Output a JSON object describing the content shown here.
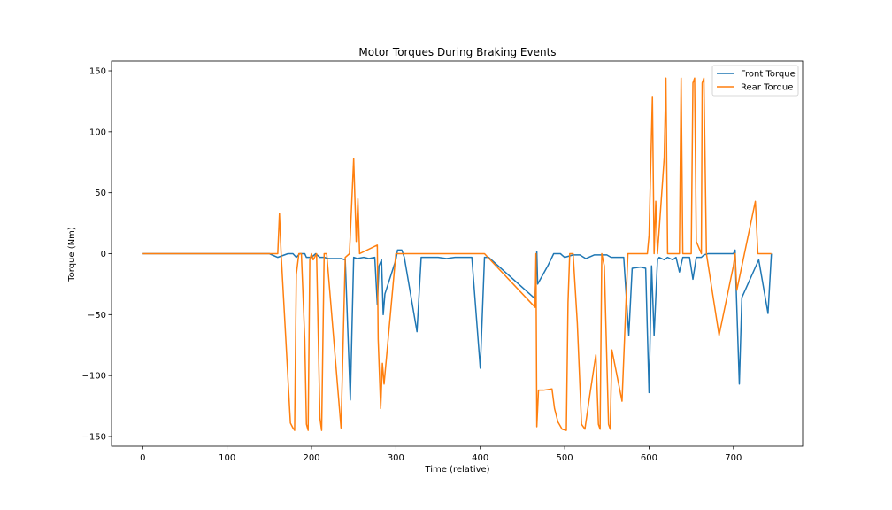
{
  "chart_data": {
    "type": "line",
    "title": "Motor Torques During Braking Events",
    "xlabel": "Time (relative)",
    "ylabel": "Torque (Nm)",
    "xlim": [
      -37,
      782
    ],
    "ylim": [
      -158,
      158
    ],
    "xticks": [
      0,
      100,
      200,
      300,
      400,
      500,
      600,
      700
    ],
    "yticks": [
      -150,
      -100,
      -50,
      0,
      50,
      100,
      150
    ],
    "ytick_labels": [
      "−150",
      "−100",
      "−50",
      "0",
      "50",
      "100",
      "150"
    ],
    "grid": false,
    "legend_position": "top-right",
    "series": [
      {
        "name": "Front Torque",
        "color": "#1f77b4",
        "points": [
          [
            0,
            0
          ],
          [
            150,
            0
          ],
          [
            160,
            -3
          ],
          [
            172,
            0
          ],
          [
            178,
            0
          ],
          [
            182,
            -3
          ],
          [
            186,
            0
          ],
          [
            192,
            0
          ],
          [
            194,
            -3
          ],
          [
            200,
            -3
          ],
          [
            205,
            0
          ],
          [
            210,
            -3
          ],
          [
            215,
            -3
          ],
          [
            220,
            -4
          ],
          [
            235,
            -4
          ],
          [
            240,
            -5
          ],
          [
            246,
            -120
          ],
          [
            248,
            -60
          ],
          [
            250,
            -3
          ],
          [
            254,
            -4
          ],
          [
            262,
            -3
          ],
          [
            268,
            -4
          ],
          [
            275,
            -3
          ],
          [
            278,
            -42
          ],
          [
            280,
            -10
          ],
          [
            283,
            -5
          ],
          [
            285,
            -50
          ],
          [
            287,
            -33
          ],
          [
            300,
            -5
          ],
          [
            302,
            3
          ],
          [
            307,
            3
          ],
          [
            310,
            -3
          ],
          [
            325,
            -64
          ],
          [
            330,
            -3
          ],
          [
            340,
            -3
          ],
          [
            350,
            -3
          ],
          [
            360,
            -4
          ],
          [
            370,
            -3
          ],
          [
            380,
            -3
          ],
          [
            390,
            -3
          ],
          [
            400,
            -94
          ],
          [
            405,
            -3
          ],
          [
            410,
            -3
          ],
          [
            465,
            -37
          ],
          [
            467,
            2
          ],
          [
            468,
            -25
          ],
          [
            480,
            -10
          ],
          [
            487,
            0
          ],
          [
            495,
            0
          ],
          [
            500,
            -3
          ],
          [
            510,
            -1
          ],
          [
            518,
            -1
          ],
          [
            525,
            -4
          ],
          [
            535,
            -1
          ],
          [
            550,
            -1
          ],
          [
            555,
            -3
          ],
          [
            570,
            -3
          ],
          [
            576,
            -67
          ],
          [
            580,
            -12
          ],
          [
            590,
            -11
          ],
          [
            596,
            -12
          ],
          [
            600,
            -114
          ],
          [
            603,
            -10
          ],
          [
            606,
            -67
          ],
          [
            610,
            -5
          ],
          [
            612,
            -3
          ],
          [
            618,
            -5
          ],
          [
            622,
            -3
          ],
          [
            628,
            -5
          ],
          [
            632,
            -3
          ],
          [
            636,
            -15
          ],
          [
            640,
            -3
          ],
          [
            648,
            -3
          ],
          [
            652,
            -21
          ],
          [
            656,
            -3
          ],
          [
            662,
            -3
          ],
          [
            665,
            -1
          ],
          [
            670,
            0
          ],
          [
            695,
            0
          ],
          [
            700,
            0
          ],
          [
            702,
            3
          ],
          [
            703,
            -23
          ],
          [
            707,
            -107
          ],
          [
            710,
            -36
          ],
          [
            730,
            -5
          ],
          [
            741,
            -49
          ],
          [
            745,
            0
          ]
        ]
      },
      {
        "name": "Rear Torque",
        "color": "#ff7f0e",
        "points": [
          [
            0,
            0
          ],
          [
            150,
            0
          ],
          [
            160,
            0
          ],
          [
            162,
            33
          ],
          [
            164,
            0
          ],
          [
            175,
            -139
          ],
          [
            178,
            -143
          ],
          [
            180,
            -145
          ],
          [
            182,
            -17
          ],
          [
            185,
            0
          ],
          [
            188,
            0
          ],
          [
            192,
            -70
          ],
          [
            194,
            -140
          ],
          [
            196,
            -145
          ],
          [
            198,
            -5
          ],
          [
            200,
            0
          ],
          [
            202,
            -5
          ],
          [
            206,
            0
          ],
          [
            210,
            -135
          ],
          [
            212,
            -145
          ],
          [
            215,
            0
          ],
          [
            218,
            0
          ],
          [
            235,
            -143
          ],
          [
            240,
            -3
          ],
          [
            245,
            0
          ],
          [
            250,
            78
          ],
          [
            253,
            10
          ],
          [
            255,
            45
          ],
          [
            257,
            0
          ],
          [
            278,
            7
          ],
          [
            279,
            -70
          ],
          [
            282,
            -127
          ],
          [
            284,
            -90
          ],
          [
            286,
            -107
          ],
          [
            300,
            0
          ],
          [
            310,
            0
          ],
          [
            350,
            0
          ],
          [
            380,
            0
          ],
          [
            405,
            0
          ],
          [
            465,
            -44
          ],
          [
            466,
            0
          ],
          [
            467,
            -142
          ],
          [
            469,
            -112
          ],
          [
            475,
            -112
          ],
          [
            485,
            -111
          ],
          [
            488,
            -127
          ],
          [
            492,
            -138
          ],
          [
            497,
            -144
          ],
          [
            502,
            -145
          ],
          [
            504,
            -40
          ],
          [
            506,
            0
          ],
          [
            510,
            0
          ],
          [
            515,
            -57
          ],
          [
            520,
            -140
          ],
          [
            524,
            -144
          ],
          [
            530,
            -115
          ],
          [
            537,
            -83
          ],
          [
            540,
            -140
          ],
          [
            542,
            -144
          ],
          [
            544,
            0
          ],
          [
            547,
            -10
          ],
          [
            552,
            -140
          ],
          [
            554,
            -144
          ],
          [
            556,
            -79
          ],
          [
            568,
            -121
          ],
          [
            575,
            0
          ],
          [
            598,
            0
          ],
          [
            600,
            15
          ],
          [
            604,
            129
          ],
          [
            606,
            0
          ],
          [
            608,
            43
          ],
          [
            610,
            0
          ],
          [
            618,
            79
          ],
          [
            620,
            144
          ],
          [
            622,
            0
          ],
          [
            636,
            0
          ],
          [
            638,
            144
          ],
          [
            640,
            0
          ],
          [
            650,
            0
          ],
          [
            652,
            140
          ],
          [
            654,
            144
          ],
          [
            656,
            10
          ],
          [
            662,
            0
          ],
          [
            663,
            140
          ],
          [
            665,
            144
          ],
          [
            668,
            0
          ],
          [
            683,
            -67
          ],
          [
            700,
            -10
          ],
          [
            702,
            0
          ],
          [
            704,
            -30
          ],
          [
            726,
            43
          ],
          [
            729,
            0
          ],
          [
            745,
            0
          ]
        ]
      }
    ]
  }
}
